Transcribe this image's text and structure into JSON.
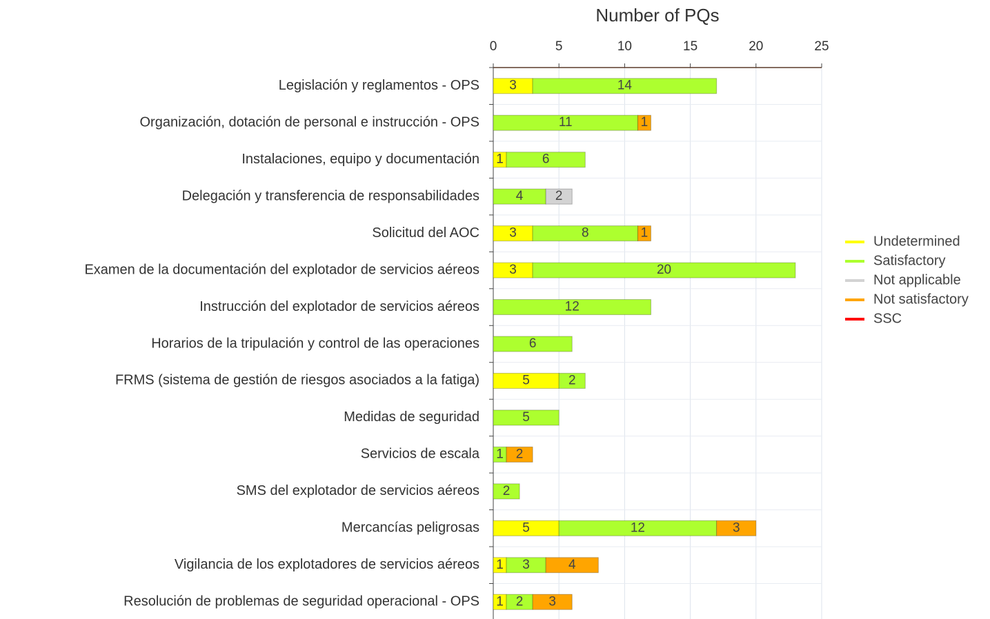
{
  "chart_data": {
    "type": "bar",
    "orientation": "horizontal",
    "stacked": true,
    "title": "Number of PQs",
    "categories": [
      "Legislación y reglamentos - OPS",
      "Organización, dotación de personal e instrucción - OPS",
      "Instalaciones, equipo y documentación",
      "Delegación y transferencia de responsabilidades",
      "Solicitud del AOC",
      "Examen de la documentación del explotador de servicios aéreos",
      "Instrucción del explotador de servicios aéreos",
      "Horarios de la tripulación y control de las operaciones",
      "FRMS (sistema de gestión de riesgos asociados a la fatiga)",
      "Medidas de seguridad",
      "Servicios de escala",
      "SMS del explotador de servicios aéreos",
      "Mercancías peligrosas",
      "Vigilancia de los explotadores de servicios aéreos",
      "Resolución de problemas de seguridad operacional - OPS"
    ],
    "series": [
      {
        "name": "Undetermined",
        "color": "#ffff00",
        "values": [
          3,
          null,
          1,
          null,
          3,
          3,
          null,
          null,
          5,
          null,
          null,
          null,
          5,
          1,
          1
        ]
      },
      {
        "name": "Satisfactory",
        "color": "#adff2f",
        "values": [
          14,
          11,
          6,
          4,
          8,
          20,
          12,
          6,
          2,
          5,
          1,
          2,
          12,
          3,
          2
        ]
      },
      {
        "name": "Not applicable",
        "color": "#d3d3d3",
        "values": [
          null,
          null,
          null,
          2,
          null,
          null,
          null,
          null,
          null,
          null,
          null,
          null,
          null,
          null,
          null
        ]
      },
      {
        "name": "Not satisfactory",
        "color": "#ffa500",
        "values": [
          null,
          1,
          null,
          null,
          1,
          null,
          null,
          null,
          null,
          null,
          2,
          null,
          3,
          4,
          3
        ]
      },
      {
        "name": "SSC",
        "color": "#ff0000",
        "values": [
          null,
          null,
          null,
          null,
          null,
          null,
          null,
          null,
          null,
          null,
          null,
          null,
          null,
          null,
          null
        ]
      }
    ],
    "xlim": [
      0,
      25
    ],
    "xticks": [
      0,
      5,
      10,
      15,
      20,
      25
    ],
    "grid": true,
    "legend": "right"
  }
}
